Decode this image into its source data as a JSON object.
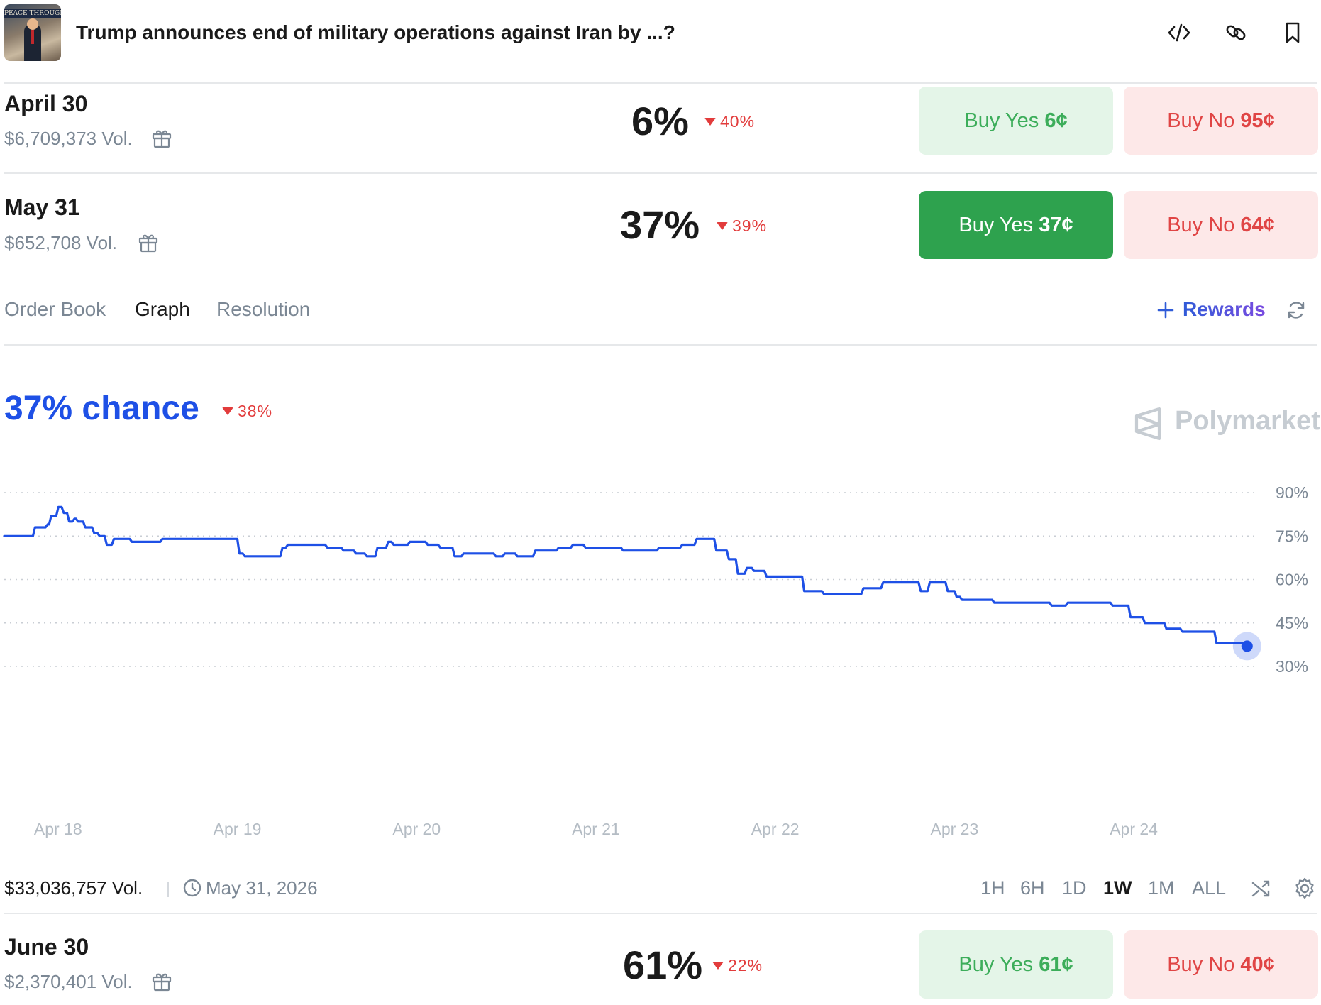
{
  "header": {
    "thumbnail_text": "PEACE THROUGH STRENGTH",
    "title": "Trump announces end of military operations against Iran by ...?",
    "icons": [
      "embed-code-icon",
      "link-icon",
      "bookmark-icon"
    ]
  },
  "markets": [
    {
      "date": "April 30",
      "volume": "$6,709,373 Vol.",
      "chance": "6%",
      "change": "40%",
      "buy_yes_label": "Buy Yes",
      "buy_yes_price": "6¢",
      "buy_no_label": "Buy No",
      "buy_no_price": "95¢"
    },
    {
      "date": "May 31",
      "volume": "$652,708 Vol.",
      "chance": "37%",
      "change": "39%",
      "buy_yes_label": "Buy Yes",
      "buy_yes_price": "37¢",
      "buy_no_label": "Buy No",
      "buy_no_price": "64¢"
    },
    {
      "date": "June 30",
      "volume": "$2,370,401 Vol.",
      "chance": "61%",
      "change": "22%",
      "buy_yes_label": "Buy Yes",
      "buy_yes_price": "61¢",
      "buy_no_label": "Buy No",
      "buy_no_price": "40¢"
    }
  ],
  "tabs": [
    "Order Book",
    "Graph",
    "Resolution"
  ],
  "active_tab": "Graph",
  "rewards_label": "Rewards",
  "graph": {
    "chance_label": "37% chance",
    "change": "38%",
    "brand": "Polymarket",
    "line_color": "#1e50e6"
  },
  "chart_data": {
    "type": "line",
    "y_unit": "%",
    "ylim": [
      28,
      95
    ],
    "y_ticks": [
      90,
      75,
      60,
      45,
      30
    ],
    "y_tick_labels": [
      "90%",
      "75%",
      "60%",
      "45%",
      "30%"
    ],
    "x_tick_labels": [
      "Apr 18",
      "Apr 19",
      "Apr 20",
      "Apr 21",
      "Apr 22",
      "Apr 23",
      "Apr 24"
    ],
    "x_range": [
      17.7,
      24.7
    ],
    "grid": true,
    "series": [
      {
        "x": [
          17.7,
          17.83,
          17.86,
          17.93,
          17.95,
          17.99,
          18.02,
          18.05,
          18.08,
          18.1,
          18.14,
          18.19,
          18.22,
          18.26,
          18.3,
          18.35,
          18.4,
          18.49,
          18.57,
          18.94,
          19.0,
          19.03,
          19.15,
          19.24,
          19.27,
          19.45,
          19.49,
          19.58,
          19.65,
          19.71,
          19.77,
          19.83,
          19.86,
          19.95,
          20.05,
          20.12,
          20.2,
          20.25,
          20.33,
          20.37,
          20.43,
          20.48,
          20.55,
          20.65,
          20.78,
          20.86,
          20.93,
          21.06,
          21.14,
          21.25,
          21.34,
          21.39,
          21.47,
          21.55,
          21.6,
          21.66,
          21.73,
          21.78,
          21.83,
          21.87,
          21.94,
          22.02,
          22.1,
          22.15,
          22.26,
          22.43,
          22.48,
          22.59,
          22.66,
          22.8,
          22.85,
          22.95,
          23.0,
          23.03,
          23.08,
          23.13,
          23.21,
          23.34,
          23.43,
          23.53,
          23.62,
          23.77,
          23.87,
          23.97,
          24.05,
          24.17,
          24.26,
          24.36,
          24.45,
          24.55,
          24.62
        ],
        "y": [
          75,
          75,
          78,
          79,
          82,
          85,
          83,
          80,
          81,
          80,
          78,
          76,
          75,
          72,
          74,
          74,
          73,
          73,
          74,
          74,
          69,
          68,
          68,
          71,
          72,
          72,
          71,
          70,
          69,
          68,
          71,
          73,
          72,
          73,
          72,
          71,
          68,
          69,
          69,
          69,
          68,
          69,
          68,
          70,
          71,
          72,
          71,
          71,
          70,
          70,
          71,
          71,
          72,
          74,
          74,
          70,
          67,
          62,
          64,
          63,
          61,
          61,
          61,
          56,
          55,
          55,
          57,
          59,
          59,
          56,
          59,
          56,
          54,
          53,
          53,
          53,
          52,
          52,
          52,
          51,
          52,
          52,
          51,
          47,
          45,
          43,
          42,
          42,
          38,
          38,
          37
        ]
      }
    ]
  },
  "footer": {
    "volume": "$33,036,757 Vol.",
    "end_date": "May 31, 2026",
    "ranges": [
      "1H",
      "6H",
      "1D",
      "1W",
      "1M",
      "ALL"
    ],
    "active_range": "1W"
  }
}
